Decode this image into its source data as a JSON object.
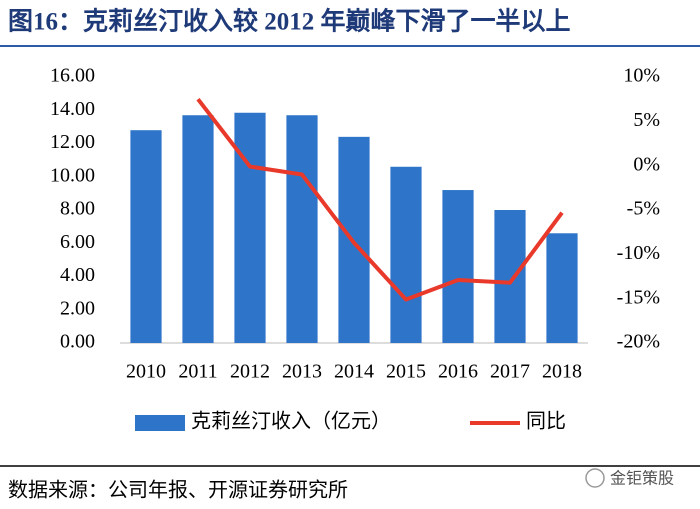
{
  "chart_data": {
    "type": "bar",
    "title": "图16：克莉丝汀收入较 2012 年巅峰下滑了一半以上",
    "categories": [
      "2010",
      "2011",
      "2012",
      "2013",
      "2014",
      "2015",
      "2016",
      "2017",
      "2018"
    ],
    "series": [
      {
        "name": "克莉丝汀收入（亿元）",
        "type": "bar",
        "color": "#2e75c9",
        "values": [
          12.8,
          13.7,
          13.85,
          13.7,
          12.4,
          10.6,
          9.2,
          8.0,
          6.6
        ]
      },
      {
        "name": "同比",
        "type": "line",
        "axis": "y2",
        "color": "#e8392b",
        "values": [
          null,
          7.5,
          -0.1,
          -1.0,
          -8.7,
          -15.1,
          -12.9,
          -13.2,
          -5.3
        ]
      }
    ],
    "ylim": [
      0,
      16
    ],
    "yticks": [
      {
        "value": 0,
        "label": "0.00"
      },
      {
        "value": 2,
        "label": "2.00"
      },
      {
        "value": 4,
        "label": "4.00"
      },
      {
        "value": 6,
        "label": "6.00"
      },
      {
        "value": 8,
        "label": "8.00"
      },
      {
        "value": 10,
        "label": "10.00"
      },
      {
        "value": 12,
        "label": "12.00"
      },
      {
        "value": 14,
        "label": "14.00"
      },
      {
        "value": 16,
        "label": "16.00"
      }
    ],
    "y2lim": [
      -20,
      10
    ],
    "y2ticks": [
      {
        "value": -20,
        "label": "-20%"
      },
      {
        "value": -15,
        "label": "-15%"
      },
      {
        "value": -10,
        "label": "-10%"
      },
      {
        "value": -5,
        "label": "-5%"
      },
      {
        "value": 0,
        "label": "0%"
      },
      {
        "value": 5,
        "label": "5%"
      },
      {
        "value": 10,
        "label": "10%"
      }
    ],
    "legend": "bottom",
    "source": "数据来源：公司年报、开源证券研究所",
    "watermark": "金钜策股"
  }
}
